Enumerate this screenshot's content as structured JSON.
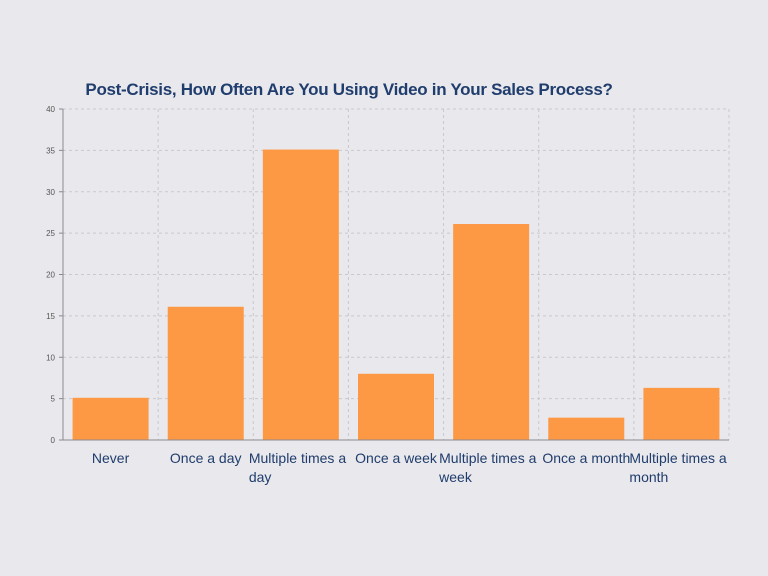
{
  "chart_data": {
    "type": "bar",
    "title": "Post-Crisis, How Often Are You Using Video in Your Sales Process?",
    "xlabel": "",
    "ylabel": "",
    "categories": [
      "Never",
      "Once a day",
      "Multiple times a day",
      "Once a week",
      "Multiple times a week",
      "Once a month",
      "Multiple times a month"
    ],
    "category_lines": [
      [
        "Never"
      ],
      [
        "Once a day"
      ],
      [
        "Multiple times a",
        "day"
      ],
      [
        "Once a week"
      ],
      [
        "Multiple times a",
        "week"
      ],
      [
        "Once a month"
      ],
      [
        "Multiple times a",
        "month"
      ]
    ],
    "values": [
      5.1,
      16.1,
      35.1,
      8.0,
      26.1,
      2.7,
      6.3
    ],
    "ylim": [
      0,
      40
    ],
    "yticks": [
      0,
      5,
      10,
      15,
      20,
      25,
      30,
      35,
      40
    ],
    "grid": true,
    "bar_color": "#fd9845",
    "title_color": "#1f3d6d"
  }
}
